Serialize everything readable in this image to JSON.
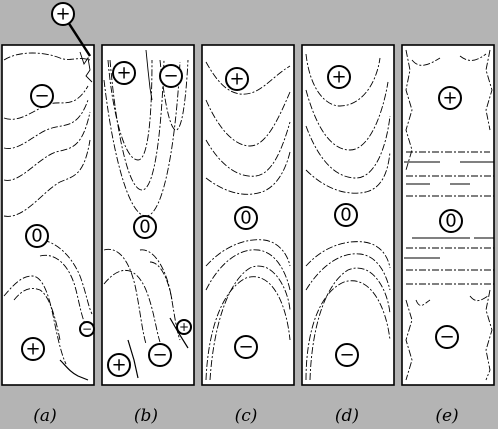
{
  "panels": [
    {
      "label": "(a)",
      "markers": [
        "+",
        "−",
        "0",
        "−",
        "+"
      ]
    },
    {
      "label": "(b)",
      "markers": [
        "+",
        "−",
        "0",
        "+",
        "−",
        "+"
      ]
    },
    {
      "label": "(c)",
      "markers": [
        "+",
        "0",
        "−"
      ]
    },
    {
      "label": "(d)",
      "markers": [
        "+",
        "0",
        "−"
      ]
    },
    {
      "label": "(e)",
      "markers": [
        "+",
        "0",
        "−"
      ]
    }
  ]
}
